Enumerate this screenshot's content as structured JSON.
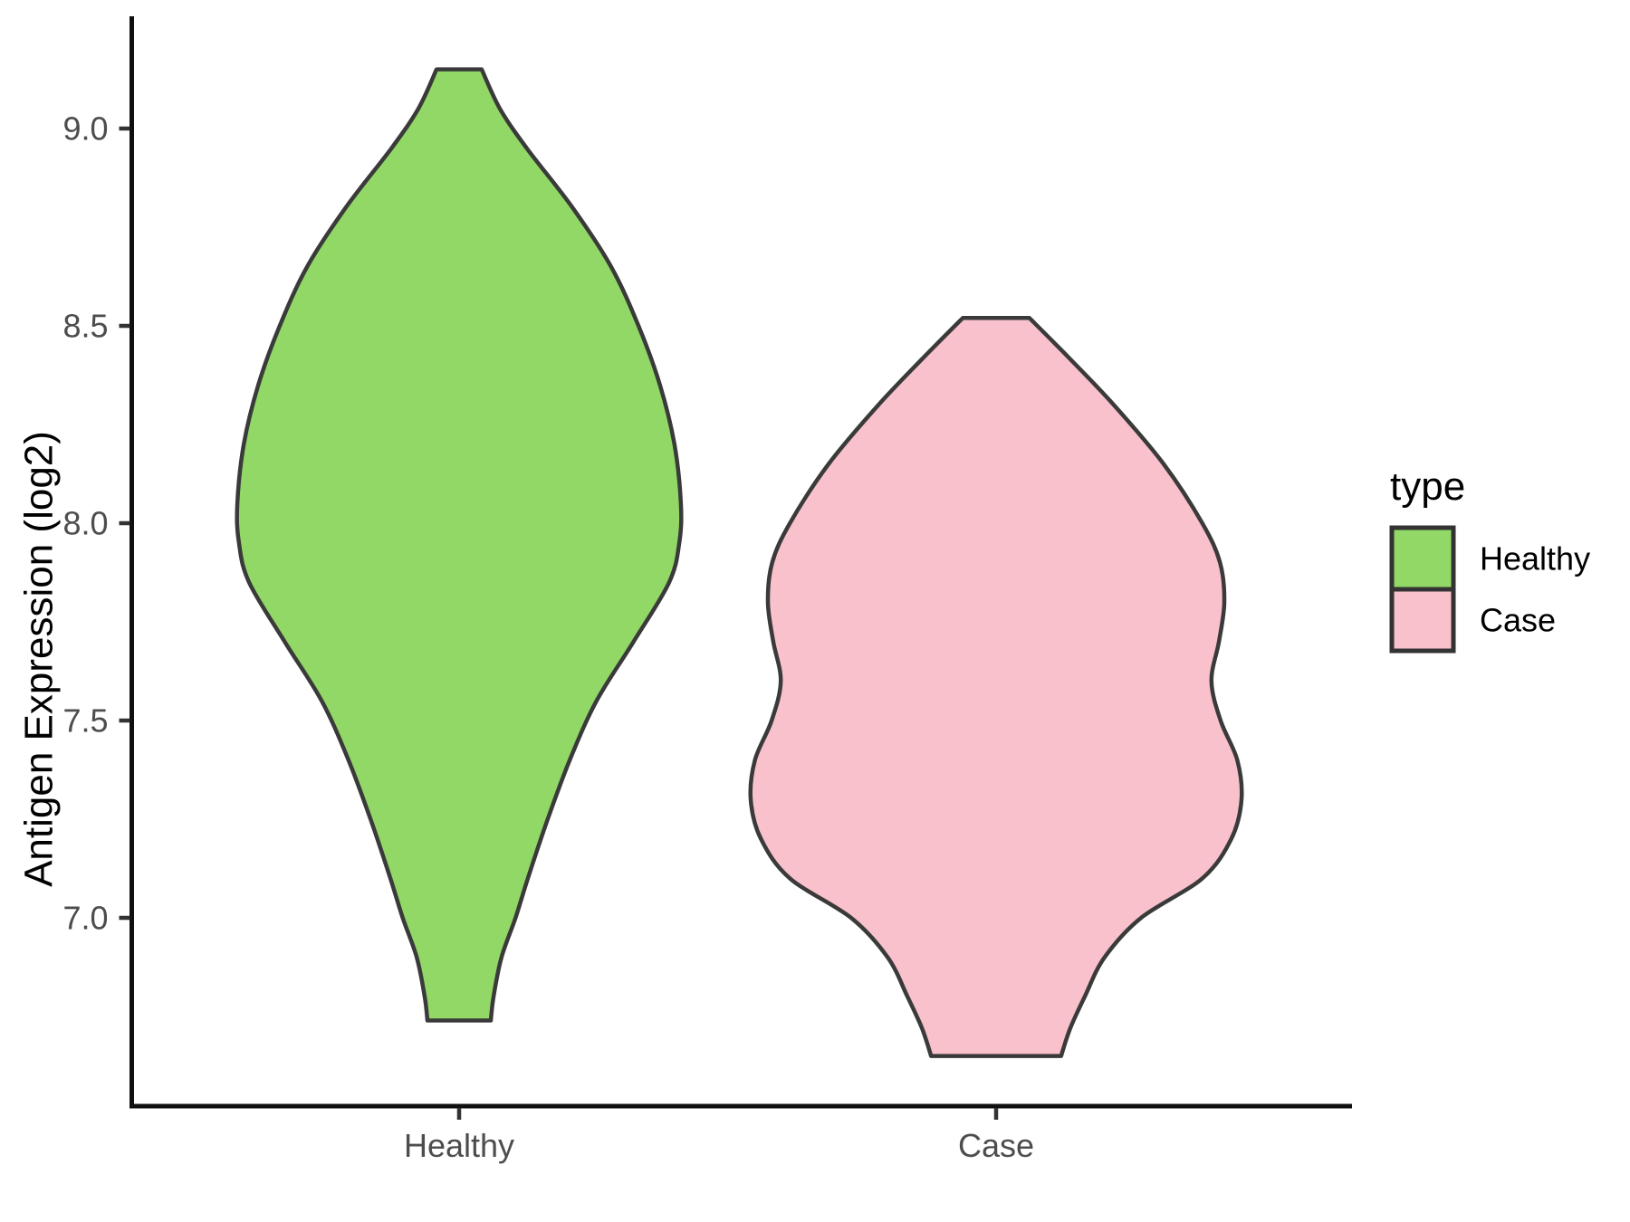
{
  "figure": {
    "background": "#FFFFFF"
  },
  "style_colors": {
    "healthy_fill": "#92D866",
    "case_fill": "#F8C1CC",
    "violin_outline": "#3A3A3A",
    "axis_line": "#0F0F0F",
    "tick_mark": "#333333",
    "tick_label_text": "#4D4D4D",
    "title_text": "#000000"
  },
  "chart_data": {
    "type": "violin",
    "title": "",
    "xlabel": "",
    "ylabel": "Antigen Expression (log2)",
    "x_categories": [
      "Healthy",
      "Case"
    ],
    "y_ticks": [
      9.0,
      8.5,
      8.0,
      7.5,
      7.0
    ],
    "y_tick_labels": [
      "9.0",
      "8.5",
      "8.0",
      "7.5",
      "7.0"
    ],
    "ylim": [
      6.52,
      9.28
    ],
    "grid": false,
    "legend": {
      "title": "type",
      "position": "right",
      "items": [
        "Healthy",
        "Case"
      ]
    },
    "profile_units": "pairs of [y_value_log2, half_width_as_fraction_of_category_spacing]",
    "series": [
      {
        "name": "Healthy",
        "fill": "#92D866",
        "outline": "#3A3A3A",
        "y_min": 6.74,
        "y_max": 9.15,
        "widest_at": 8.0,
        "density_profile": [
          [
            9.15,
            0.042
          ],
          [
            9.05,
            0.076
          ],
          [
            8.95,
            0.126
          ],
          [
            8.8,
            0.211
          ],
          [
            8.65,
            0.283
          ],
          [
            8.5,
            0.334
          ],
          [
            8.35,
            0.374
          ],
          [
            8.2,
            0.401
          ],
          [
            8.05,
            0.413
          ],
          [
            7.95,
            0.41
          ],
          [
            7.85,
            0.391
          ],
          [
            7.7,
            0.325
          ],
          [
            7.55,
            0.256
          ],
          [
            7.4,
            0.206
          ],
          [
            7.25,
            0.165
          ],
          [
            7.1,
            0.128
          ],
          [
            7.0,
            0.105
          ],
          [
            6.9,
            0.079
          ],
          [
            6.8,
            0.064
          ],
          [
            6.74,
            0.059
          ]
        ]
      },
      {
        "name": "Case",
        "fill": "#F8C1CC",
        "outline": "#3A3A3A",
        "y_min": 6.65,
        "y_max": 8.52,
        "widest_at": 7.3,
        "density_profile": [
          [
            8.52,
            0.062
          ],
          [
            8.42,
            0.135
          ],
          [
            8.3,
            0.219
          ],
          [
            8.15,
            0.312
          ],
          [
            8.0,
            0.384
          ],
          [
            7.9,
            0.417
          ],
          [
            7.8,
            0.425
          ],
          [
            7.7,
            0.415
          ],
          [
            7.6,
            0.401
          ],
          [
            7.5,
            0.418
          ],
          [
            7.4,
            0.449
          ],
          [
            7.3,
            0.457
          ],
          [
            7.2,
            0.438
          ],
          [
            7.1,
            0.384
          ],
          [
            7.0,
            0.27
          ],
          [
            6.9,
            0.202
          ],
          [
            6.8,
            0.165
          ],
          [
            6.72,
            0.138
          ],
          [
            6.65,
            0.121
          ]
        ]
      }
    ]
  }
}
